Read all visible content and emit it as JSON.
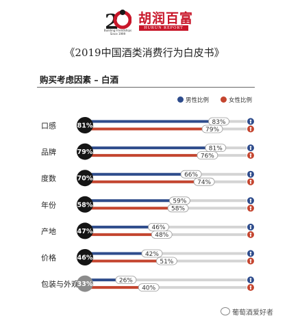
{
  "header": {
    "logo_caption": "Building Friendships\nSince 1999",
    "brand_cn": "胡润百富",
    "brand_en": "HURUN REPORT",
    "report_title": "《2019中国酒类消费行为白皮书》"
  },
  "colors": {
    "male": "#2e4c8c",
    "female": "#c4452f",
    "track": "#d4d4d4",
    "total_dark": "#151515",
    "total_light": "#8c8c8c"
  },
  "chart_data": {
    "type": "bar",
    "title": "购买考虑因素 – 白酒",
    "categories": [
      "口感",
      "品牌",
      "度数",
      "年份",
      "产地",
      "价格",
      "包装与外观"
    ],
    "overall": [
      "81%",
      "79%",
      "70%",
      "58%",
      "47%",
      "46%",
      "33%"
    ],
    "series": [
      {
        "name": "男性比例",
        "values": [
          83,
          81,
          66,
          59,
          46,
          42,
          26
        ],
        "labels": [
          "83%",
          "81%",
          "66%",
          "59%",
          "46%",
          "42%",
          "26%"
        ]
      },
      {
        "name": "女性比例",
        "values": [
          79,
          76,
          74,
          58,
          48,
          51,
          40
        ],
        "labels": [
          "79%",
          "76%",
          "74%",
          "58%",
          "48%",
          "51%",
          "40%"
        ]
      }
    ],
    "ylim": [
      0,
      100
    ],
    "legend_position": "top-right"
  },
  "watermark": "葡萄酒爱好者"
}
